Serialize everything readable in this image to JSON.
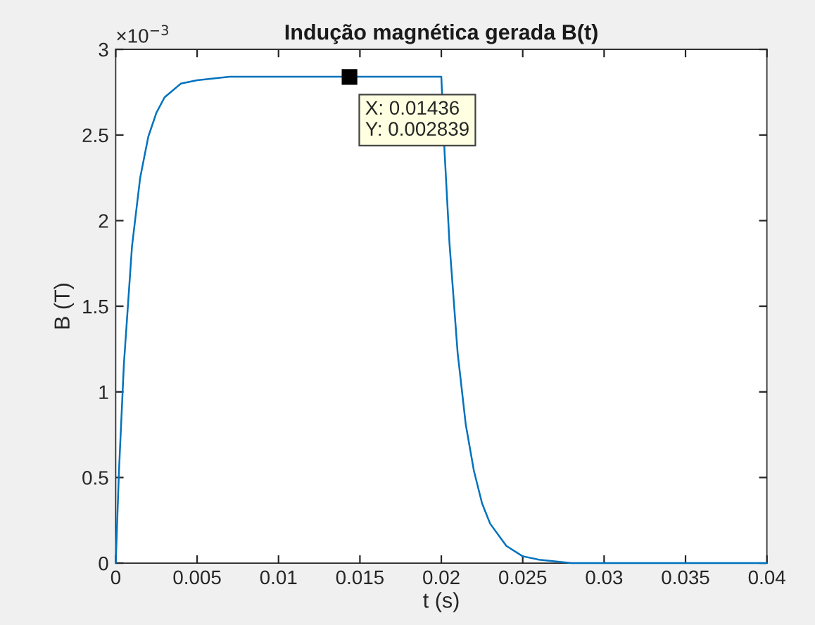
{
  "chart_data": {
    "type": "line",
    "title": "Indução magnética gerada B(t)",
    "xlabel": "t (s)",
    "ylabel": "B (T)",
    "x": [
      0,
      0.0002,
      0.0005,
      0.001,
      0.0015,
      0.002,
      0.0025,
      0.003,
      0.004,
      0.005,
      0.007,
      0.01,
      0.01436,
      0.02,
      0.0202,
      0.0205,
      0.021,
      0.0215,
      0.022,
      0.0225,
      0.023,
      0.024,
      0.025,
      0.026,
      0.028,
      0.03,
      0.04
    ],
    "series": [
      {
        "color": "#0072bd",
        "values": [
          0,
          0.54,
          1.16,
          1.85,
          2.25,
          2.49,
          2.63,
          2.72,
          2.8,
          2.82,
          2.84,
          2.84,
          2.84,
          2.84,
          2.4,
          1.87,
          1.23,
          0.81,
          0.54,
          0.35,
          0.23,
          0.1,
          0.04,
          0.02,
          0,
          0,
          0
        ]
      }
    ],
    "xlim": [
      0,
      0.04
    ],
    "xticks": [
      0,
      0.005,
      0.01,
      0.015,
      0.02,
      0.025,
      0.03,
      0.035,
      0.04
    ],
    "ylim": [
      0,
      3
    ],
    "yticks": [
      0,
      0.5,
      1,
      1.5,
      2,
      2.5,
      3
    ],
    "annotations": [
      "×10$^{−3}$",
      {
        "text": "X: 0.01436\nY: 0.002839",
        "x": 0.01436,
        "y": 2.839
      }
    ],
    "grid": false,
    "legend": false,
    "marker": "none",
    "line_style": "solid"
  }
}
